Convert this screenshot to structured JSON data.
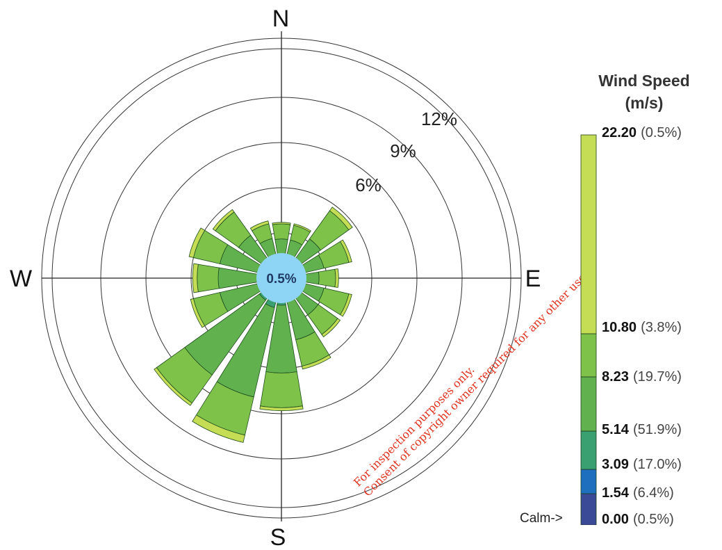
{
  "chart_data": {
    "type": "windrose",
    "directions": [
      "N",
      "NNE",
      "NE",
      "ENE",
      "E",
      "ESE",
      "SE",
      "SSE",
      "S",
      "SSW",
      "SW",
      "WSW",
      "W",
      "WNW",
      "NW",
      "NNW"
    ],
    "compass_labels": {
      "north": "N",
      "east": "E",
      "south": "S",
      "west": "W"
    },
    "ring_labels": [
      "6%",
      "9%",
      "12%"
    ],
    "calm_label": "0.5%",
    "speed_bins": [
      {
        "lower": "0.00",
        "pct": "(0.5%)",
        "color": "#3b4a96"
      },
      {
        "lower": "1.54",
        "pct": "(6.4%)",
        "color": "#1f6fbf"
      },
      {
        "lower": "3.09",
        "pct": "(17.0%)",
        "color": "#3aa071"
      },
      {
        "lower": "5.14",
        "pct": "(51.9%)",
        "color": "#62b14f"
      },
      {
        "lower": "8.23",
        "pct": "(19.7%)",
        "color": "#7fc24a"
      },
      {
        "lower": "10.80",
        "pct": "(3.8%)",
        "color": "#c5dc55"
      },
      {
        "lower": "22.20",
        "pct": "(0.5%)",
        "color": "#c5dc55"
      }
    ],
    "sector_cumulative_pct": [
      {
        "dir": "N",
        "bins": [
          1.0,
          1.5,
          2.6,
          3.6,
          3.7
        ]
      },
      {
        "dir": "NNE",
        "bins": [
          1.0,
          1.5,
          2.6,
          3.6,
          3.7
        ]
      },
      {
        "dir": "NE",
        "bins": [
          1.0,
          1.5,
          3.2,
          5.5,
          5.8
        ]
      },
      {
        "dir": "ENE",
        "bins": [
          1.0,
          1.5,
          2.9,
          4.6,
          4.8
        ]
      },
      {
        "dir": "E",
        "bins": [
          1.0,
          1.5,
          2.5,
          3.6,
          3.8
        ]
      },
      {
        "dir": "ESE",
        "bins": [
          1.0,
          1.5,
          2.9,
          4.6,
          4.8
        ]
      },
      {
        "dir": "SE",
        "bins": [
          1.0,
          1.5,
          3.0,
          4.6,
          4.8
        ]
      },
      {
        "dir": "SSE",
        "bins": [
          1.0,
          1.6,
          4.2,
          6.0,
          6.2
        ]
      },
      {
        "dir": "S",
        "bins": [
          1.0,
          1.8,
          6.3,
          8.6,
          8.8
        ]
      },
      {
        "dir": "SSW",
        "bins": [
          1.0,
          2.0,
          8.1,
          10.7,
          11.2
        ]
      },
      {
        "dir": "SW",
        "bins": [
          1.0,
          1.8,
          7.9,
          10.2,
          10.4
        ]
      },
      {
        "dir": "WSW",
        "bins": [
          1.0,
          1.6,
          4.2,
          6.0,
          6.2
        ]
      },
      {
        "dir": "W",
        "bins": [
          1.0,
          1.5,
          4.2,
          5.6,
          5.9
        ]
      },
      {
        "dir": "WNW",
        "bins": [
          1.0,
          1.5,
          4.2,
          6.0,
          6.3
        ]
      },
      {
        "dir": "NW",
        "bins": [
          1.0,
          1.5,
          3.5,
          5.4,
          5.6
        ]
      },
      {
        "dir": "NNW",
        "bins": [
          1.0,
          1.5,
          2.7,
          3.7,
          3.9
        ]
      }
    ],
    "rmax_pct": 12
  },
  "legend": {
    "title_line1": "Wind Speed",
    "title_line2": "(m/s)",
    "calm_pointer": "Calm->"
  },
  "watermark": {
    "line1": "For inspection purposes only.",
    "line2": "Consent of copyright owner required for any other use."
  }
}
